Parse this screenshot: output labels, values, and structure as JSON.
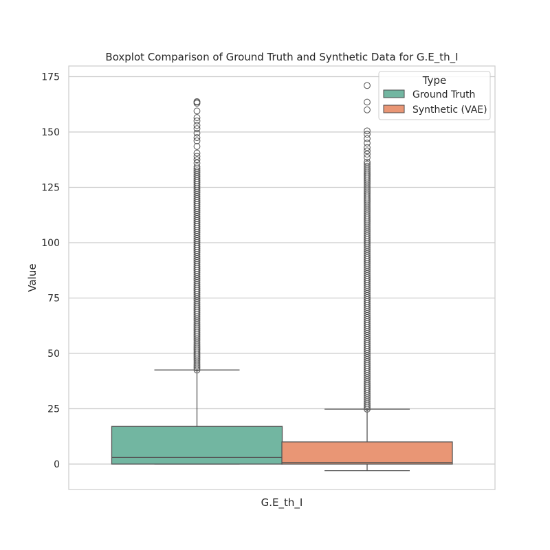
{
  "chart_data": {
    "type": "box",
    "title": "Boxplot Comparison of Ground Truth and Synthetic Data for G.E_th_I",
    "xlabel": "G.E_th_I",
    "ylabel": "Value",
    "category": "G.E_th_I",
    "ylim": [
      -11.5,
      180
    ],
    "yticks": [
      0,
      25,
      50,
      75,
      100,
      125,
      150,
      175
    ],
    "grid": "horizontal",
    "legend": {
      "title": "Type",
      "placement": "top-right"
    },
    "series": [
      {
        "name": "Ground Truth",
        "color": "#72b6a1",
        "whisker_low": 0,
        "q1": 0,
        "median": 3,
        "q3": 17,
        "whisker_high": 42.5,
        "outliers_dense_range": [
          42.5,
          135
        ],
        "outliers": [
          136,
          137.5,
          139,
          140.5,
          143.5,
          146,
          147.5,
          149.5,
          151.5,
          153,
          155,
          156.5,
          159.5,
          163,
          163.5,
          163.7
        ]
      },
      {
        "name": "Synthetic (VAE)",
        "color": "#e99675",
        "whisker_low": -3,
        "q1": 0,
        "median": 0.7,
        "q3": 10,
        "whisker_high": 24.8,
        "outliers_dense_range": [
          24.8,
          137
        ],
        "outliers": [
          138.5,
          140,
          141.5,
          143,
          145,
          147,
          149,
          150.5,
          160,
          163.5,
          171
        ]
      }
    ]
  }
}
